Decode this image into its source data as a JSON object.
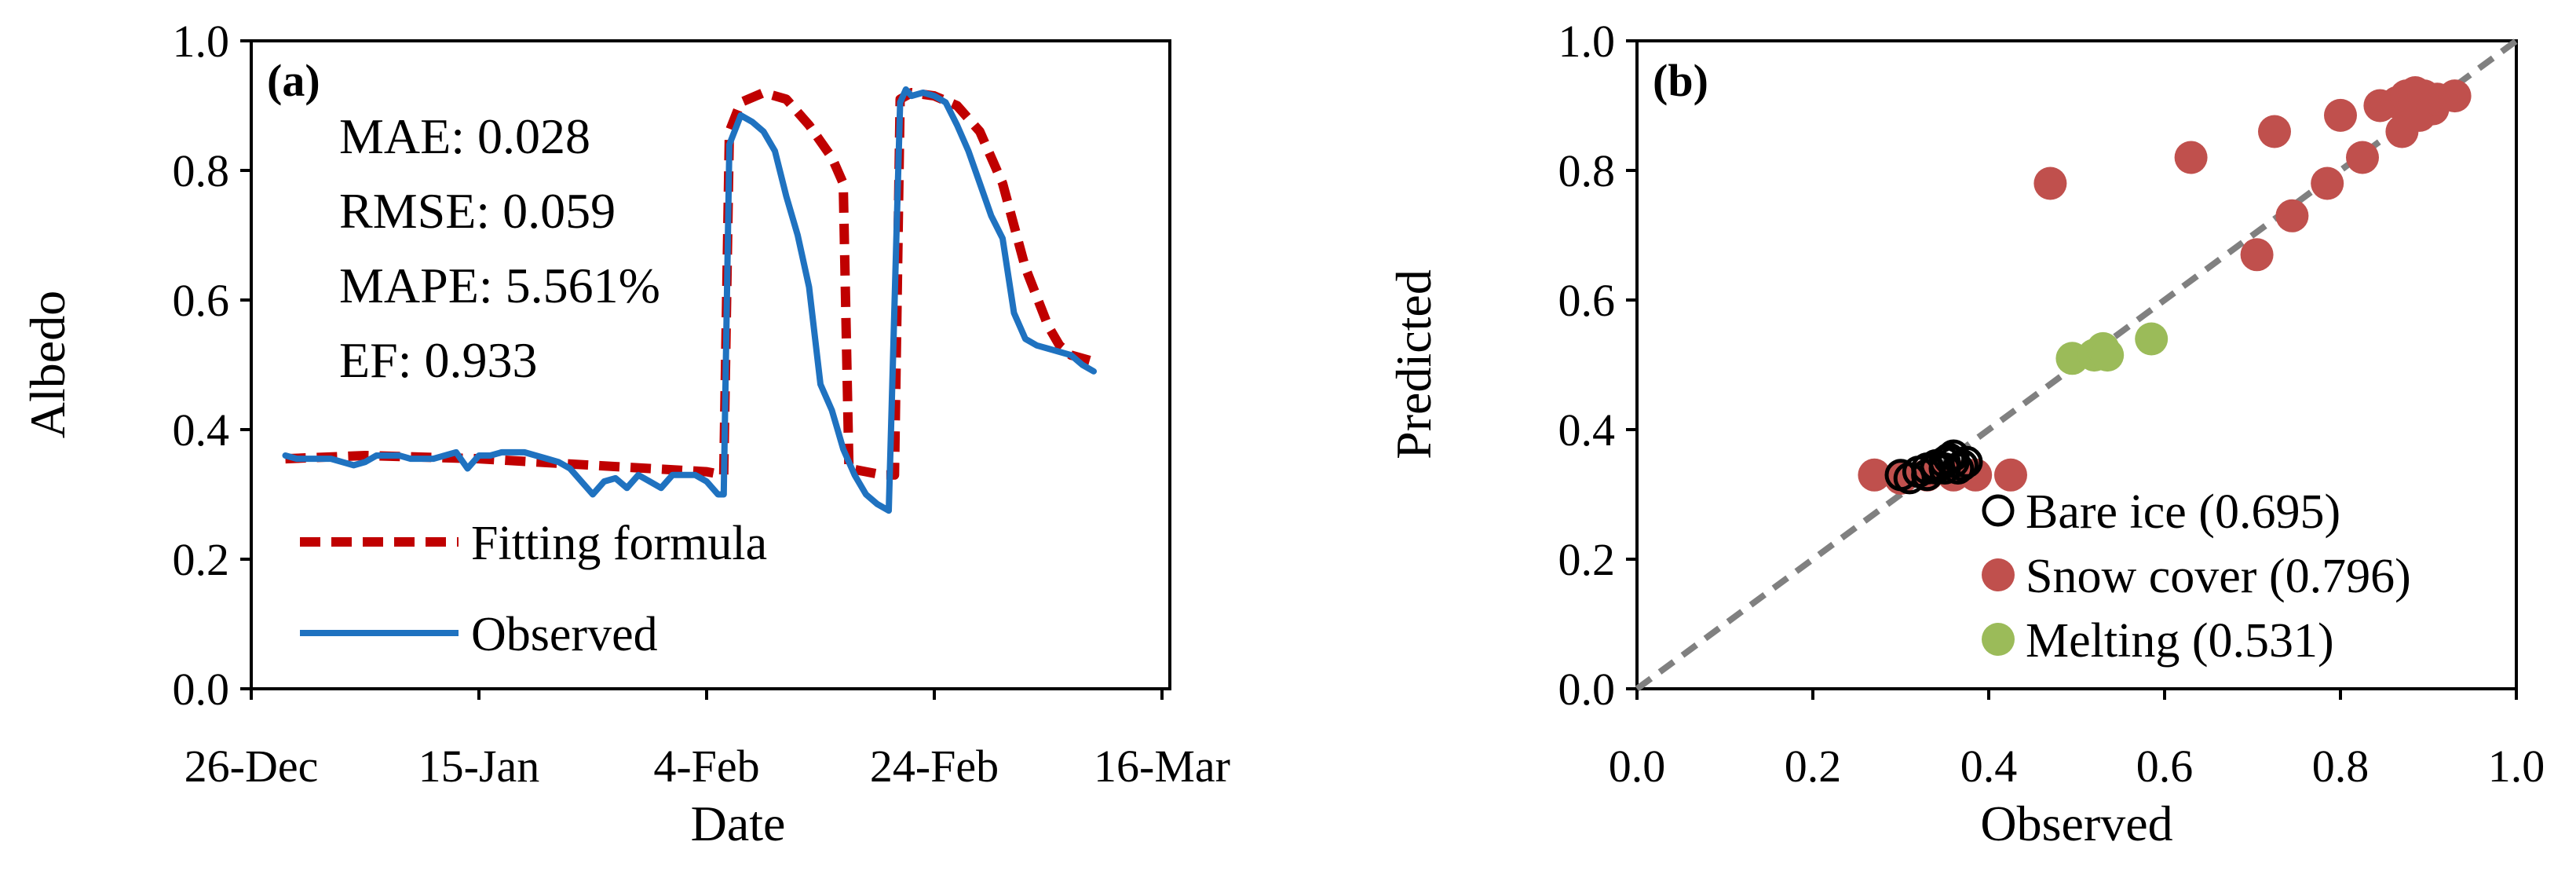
{
  "chart_data": [
    {
      "type": "line",
      "panel_label": "(a)",
      "xlabel": "Date",
      "ylabel": "Albedo",
      "ylim": [
        0,
        1
      ],
      "yticks": [
        "0.0",
        "0.2",
        "0.4",
        "0.6",
        "0.8",
        "1.0"
      ],
      "xlim": [
        0,
        80
      ],
      "xticks": [
        {
          "label": "26-Dec",
          "day": 0
        },
        {
          "label": "15-Jan",
          "day": 20
        },
        {
          "label": "4-Feb",
          "day": 40
        },
        {
          "label": "24-Feb",
          "day": 60
        },
        {
          "label": "16-Mar",
          "day": 80
        }
      ],
      "metrics": [
        "MAE: 0.028",
        "RMSE: 0.059",
        "MAPE: 5.561%",
        "EF: 0.933"
      ],
      "series": [
        {
          "name": "Fitting formula",
          "color": "#c00000",
          "style": "dashed",
          "x": [
            3,
            10,
            20,
            30,
            40,
            41.5,
            42,
            43,
            45,
            47,
            49,
            51,
            52,
            52.5,
            54,
            55.5,
            56.5,
            57,
            58,
            60,
            62,
            64,
            66,
            68,
            70,
            71,
            72,
            74
          ],
          "y": [
            0.355,
            0.36,
            0.355,
            0.345,
            0.335,
            0.33,
            0.86,
            0.905,
            0.92,
            0.91,
            0.87,
            0.82,
            0.78,
            0.34,
            0.335,
            0.33,
            0.33,
            0.91,
            0.92,
            0.915,
            0.9,
            0.86,
            0.78,
            0.65,
            0.56,
            0.53,
            0.515,
            0.505
          ]
        },
        {
          "name": "Observed",
          "color": "#1f72c0",
          "style": "solid",
          "x": [
            3,
            4,
            5,
            6,
            7,
            8,
            9,
            10,
            11,
            12,
            13,
            14,
            15,
            16,
            17,
            18,
            19,
            20,
            21,
            22,
            23,
            24,
            25,
            26,
            27,
            28,
            29,
            30,
            31,
            32,
            33,
            34,
            35,
            36,
            37,
            38,
            39,
            40,
            41,
            41.5,
            42,
            43,
            44,
            45,
            46,
            47,
            48,
            49,
            50,
            51,
            51.5,
            52,
            53,
            54,
            55,
            56,
            57,
            57.5,
            58,
            59,
            60,
            61,
            62,
            63,
            64,
            65,
            66,
            67,
            68,
            69,
            70,
            71,
            72,
            73,
            74
          ],
          "y": [
            0.36,
            0.355,
            0.355,
            0.355,
            0.355,
            0.35,
            0.345,
            0.35,
            0.36,
            0.36,
            0.36,
            0.355,
            0.355,
            0.355,
            0.36,
            0.365,
            0.34,
            0.36,
            0.36,
            0.365,
            0.365,
            0.365,
            0.36,
            0.355,
            0.35,
            0.34,
            0.32,
            0.3,
            0.32,
            0.325,
            0.31,
            0.33,
            0.32,
            0.31,
            0.33,
            0.33,
            0.33,
            0.32,
            0.3,
            0.3,
            0.84,
            0.885,
            0.875,
            0.86,
            0.83,
            0.76,
            0.7,
            0.62,
            0.47,
            0.43,
            0.4,
            0.37,
            0.33,
            0.3,
            0.285,
            0.275,
            0.905,
            0.925,
            0.915,
            0.92,
            0.915,
            0.905,
            0.87,
            0.83,
            0.78,
            0.73,
            0.695,
            0.58,
            0.54,
            0.53,
            0.525,
            0.52,
            0.515,
            0.5,
            0.49
          ]
        }
      ]
    },
    {
      "type": "scatter",
      "panel_label": "(b)",
      "xlabel": "Observed",
      "ylabel": "Predicted",
      "xlim": [
        0,
        1
      ],
      "ylim": [
        0,
        1
      ],
      "xticks": [
        "0.0",
        "0.2",
        "0.4",
        "0.6",
        "0.8",
        "1.0"
      ],
      "yticks": [
        "0.0",
        "0.2",
        "0.4",
        "0.6",
        "0.8",
        "1.0"
      ],
      "reference_line": {
        "name": "1:1 line",
        "color": "#808080",
        "style": "dashed"
      },
      "series": [
        {
          "name": "Bare ice (0.695)",
          "color": "#000000",
          "marker": "open-circle",
          "points": [
            [
              0.3,
              0.33
            ],
            [
              0.32,
              0.335
            ],
            [
              0.33,
              0.34
            ],
            [
              0.34,
              0.345
            ],
            [
              0.35,
              0.35
            ],
            [
              0.355,
              0.355
            ],
            [
              0.36,
              0.35
            ],
            [
              0.37,
              0.345
            ],
            [
              0.34,
              0.34
            ],
            [
              0.33,
              0.33
            ],
            [
              0.35,
              0.34
            ],
            [
              0.36,
              0.36
            ],
            [
              0.365,
              0.34
            ],
            [
              0.31,
              0.325
            ],
            [
              0.375,
              0.35
            ]
          ]
        },
        {
          "name": "Snow cover (0.796)",
          "color": "#c0504d",
          "marker": "filled-circle",
          "points": [
            [
              0.27,
              0.33
            ],
            [
              0.3,
              0.325
            ],
            [
              0.33,
              0.33
            ],
            [
              0.36,
              0.33
            ],
            [
              0.385,
              0.33
            ],
            [
              0.425,
              0.33
            ],
            [
              0.47,
              0.78
            ],
            [
              0.63,
              0.82
            ],
            [
              0.705,
              0.67
            ],
            [
              0.725,
              0.86
            ],
            [
              0.745,
              0.73
            ],
            [
              0.785,
              0.78
            ],
            [
              0.8,
              0.885
            ],
            [
              0.825,
              0.82
            ],
            [
              0.845,
              0.9
            ],
            [
              0.865,
              0.905
            ],
            [
              0.87,
              0.86
            ],
            [
              0.875,
              0.915
            ],
            [
              0.885,
              0.92
            ],
            [
              0.89,
              0.885
            ],
            [
              0.895,
              0.915
            ],
            [
              0.905,
              0.895
            ],
            [
              0.91,
              0.91
            ],
            [
              0.93,
              0.915
            ]
          ]
        },
        {
          "name": "Melting (0.531)",
          "color": "#9bbb59",
          "marker": "filled-circle",
          "points": [
            [
              0.495,
              0.51
            ],
            [
              0.52,
              0.515
            ],
            [
              0.53,
              0.525
            ],
            [
              0.535,
              0.515
            ],
            [
              0.585,
              0.54
            ]
          ]
        }
      ]
    }
  ]
}
